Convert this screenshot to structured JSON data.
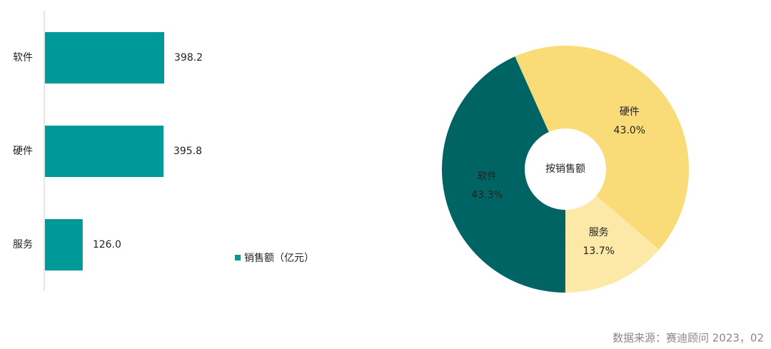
{
  "chart_data": [
    {
      "type": "hbar",
      "categories": [
        "软件",
        "硬件",
        "服务"
      ],
      "series": [
        {
          "name": "销售额（亿元）",
          "color": "#00999a",
          "values": [
            398.2,
            395.8,
            126.0
          ],
          "value_labels": [
            "398.2",
            "395.8",
            "126.0"
          ]
        }
      ]
    },
    {
      "type": "donut",
      "center_label": "按销售额",
      "categories": [
        "硬件",
        "服务",
        "软件"
      ],
      "values": [
        43.0,
        13.7,
        43.3
      ],
      "value_labels": [
        "43.0%",
        "13.7%",
        "43.3%"
      ],
      "colors": [
        "#f9dc78",
        "#fce9a8",
        "#006464"
      ]
    }
  ],
  "source": "数据来源：赛迪顾问   2023，02"
}
